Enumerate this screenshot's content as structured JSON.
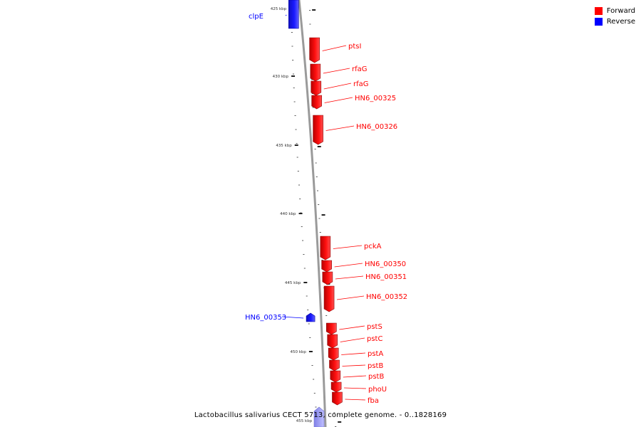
{
  "legend": [
    {
      "label": "Forward",
      "color": "#ff0000"
    },
    {
      "label": "Reverse",
      "color": "#0000ff"
    }
  ],
  "caption": "Lactobacillus salivarius CECT 5713, complete genome. - 0..1828169",
  "colors": {
    "forward": "#ff0000",
    "reverse": "#0000ff",
    "backbone": "#9a9a9a"
  },
  "ticks": [
    "425 kbp",
    "430 kbp",
    "435 kbp",
    "440 kbp",
    "445 kbp",
    "450 kbp",
    "455 kbp"
  ],
  "genes": [
    {
      "name": "clpE",
      "strand": "reverse"
    },
    {
      "name": "ptsI",
      "strand": "forward"
    },
    {
      "name": "rfaG",
      "strand": "forward"
    },
    {
      "name": "rfaG",
      "strand": "forward"
    },
    {
      "name": "HN6_00325",
      "strand": "forward"
    },
    {
      "name": "HN6_00326",
      "strand": "forward"
    },
    {
      "name": "pckA",
      "strand": "forward"
    },
    {
      "name": "HN6_00350",
      "strand": "forward"
    },
    {
      "name": "HN6_00351",
      "strand": "forward"
    },
    {
      "name": "HN6_00352",
      "strand": "forward"
    },
    {
      "name": "HN6_00353",
      "strand": "reverse"
    },
    {
      "name": "pstS",
      "strand": "forward"
    },
    {
      "name": "pstC",
      "strand": "forward"
    },
    {
      "name": "pstA",
      "strand": "forward"
    },
    {
      "name": "pstB",
      "strand": "forward"
    },
    {
      "name": "pstB",
      "strand": "forward"
    },
    {
      "name": "phoU",
      "strand": "forward"
    },
    {
      "name": "fba",
      "strand": "forward"
    }
  ]
}
